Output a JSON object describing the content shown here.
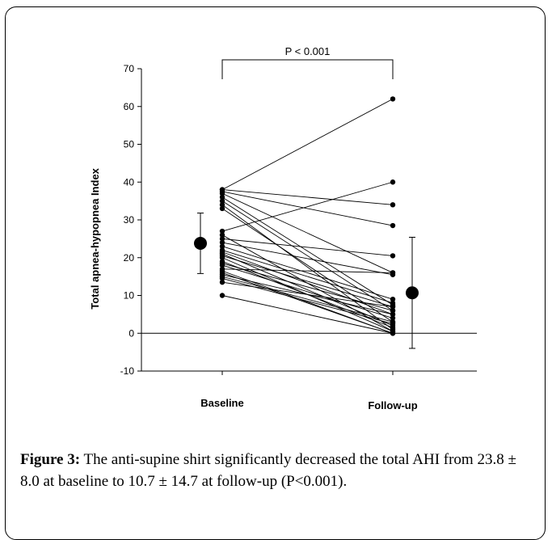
{
  "caption": {
    "label": "Figure 3:",
    "text": " The anti-supine shirt significantly decreased the total AHI from 23.8 ± 8.0 at baseline to 10.7 ± 14.7 at follow-up (P<0.001)."
  },
  "chart_data": {
    "type": "scatter",
    "title": "",
    "xlabel": "",
    "ylabel": "Total apnea-hypopnea Index",
    "categories": [
      "Baseline",
      "Follow-up"
    ],
    "ylim": [
      -10,
      70
    ],
    "yticks": [
      -10,
      0,
      10,
      20,
      30,
      40,
      50,
      60,
      70
    ],
    "grid": false,
    "annotation": "P < 0.001",
    "pairs": [
      [
        38,
        62
      ],
      [
        38,
        34
      ],
      [
        37.5,
        28.5
      ],
      [
        37,
        16
      ],
      [
        36,
        7.5
      ],
      [
        35,
        6
      ],
      [
        34,
        1
      ],
      [
        33,
        3
      ],
      [
        27,
        40
      ],
      [
        26,
        0.5
      ],
      [
        25,
        20.5
      ],
      [
        24,
        15.5
      ],
      [
        23,
        9
      ],
      [
        22,
        8
      ],
      [
        21.5,
        5
      ],
      [
        21,
        2
      ],
      [
        20.5,
        7
      ],
      [
        20,
        0.5
      ],
      [
        19,
        1.5
      ],
      [
        18.5,
        6
      ],
      [
        18,
        4
      ],
      [
        17,
        16
      ],
      [
        16.5,
        0
      ],
      [
        16,
        0
      ],
      [
        15.5,
        5
      ],
      [
        15,
        3
      ],
      [
        14.5,
        2.5
      ],
      [
        13.5,
        7
      ],
      [
        10,
        0
      ]
    ],
    "summary": [
      {
        "category": "Baseline",
        "mean": 23.8,
        "sd": 8.0
      },
      {
        "category": "Follow-up",
        "mean": 10.7,
        "sd": 14.7
      }
    ]
  }
}
